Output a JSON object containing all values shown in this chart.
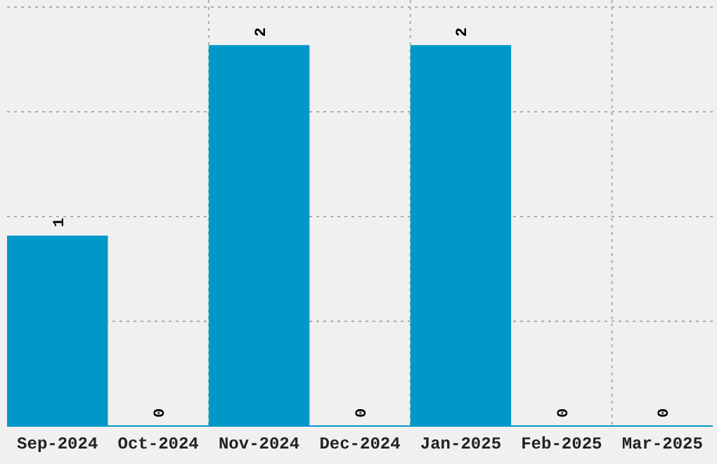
{
  "chart_data": {
    "type": "bar",
    "categories": [
      "Sep-2024",
      "Oct-2024",
      "Nov-2024",
      "Dec-2024",
      "Jan-2025",
      "Feb-2025",
      "Mar-2025"
    ],
    "values": [
      1,
      0,
      2,
      0,
      2,
      0,
      0
    ],
    "color": "#0098c9",
    "data_labels": true,
    "ylim": [
      0,
      2.2
    ],
    "yticks": [
      {
        "value": 0.55,
        "label": null
      },
      {
        "value": 1.1,
        "label": null
      },
      {
        "value": 1.65,
        "label": null
      },
      {
        "value": 2.2,
        "label": null
      }
    ],
    "tick_labels": "x",
    "grid": true
  }
}
